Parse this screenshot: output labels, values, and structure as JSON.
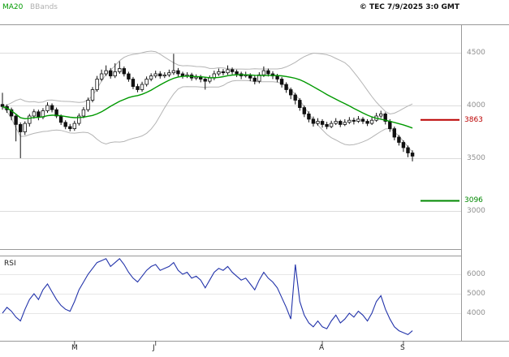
{
  "header": {
    "ma_label": "MA20",
    "bbands_label": "BBands",
    "copyright": "© TEC 7/9/2025 3:0 GMT"
  },
  "rsi_panel": {
    "label": "RSI"
  },
  "colors": {
    "ma20": "#009900",
    "bbands": "#b4b4b4",
    "candle": "#111111",
    "rsi_line": "#2233aa",
    "grid": "#dcdcdc",
    "border": "#999999"
  },
  "chart_data": {
    "type": "candlestick",
    "panels": [
      "price",
      "rsi"
    ],
    "overlays": [
      "MA20",
      "BBands(20,2)"
    ],
    "price_axis_ticks": [
      4500,
      4000,
      3500,
      3000
    ],
    "levels": [
      {
        "label": "3863",
        "value": 3863,
        "color": "#bb0000"
      },
      {
        "label": "3096",
        "value": 3096,
        "color": "#008800"
      }
    ],
    "x_labels": [
      {
        "label": "M",
        "index": 16
      },
      {
        "label": "J",
        "index": 34
      },
      {
        "label": "A",
        "index": 71
      },
      {
        "label": "S",
        "index": 89
      }
    ],
    "rsi_axis_ticks": [
      {
        "label": "6000",
        "value": 60
      },
      {
        "label": "5000",
        "value": 50
      },
      {
        "label": "4000",
        "value": 40
      }
    ],
    "candles_ohlc": [
      [
        4010,
        4120,
        3960,
        3990
      ],
      [
        3990,
        4010,
        3930,
        3960
      ],
      [
        3960,
        3980,
        3860,
        3900
      ],
      [
        3900,
        3920,
        3660,
        3820
      ],
      [
        3820,
        3840,
        3500,
        3750
      ],
      [
        3750,
        3850,
        3720,
        3830
      ],
      [
        3830,
        3920,
        3800,
        3900
      ],
      [
        3900,
        3965,
        3875,
        3940
      ],
      [
        3940,
        3960,
        3860,
        3890
      ],
      [
        3890,
        3975,
        3870,
        3950
      ],
      [
        3950,
        4030,
        3930,
        4000
      ],
      [
        4000,
        4020,
        3935,
        3960
      ],
      [
        3960,
        3980,
        3880,
        3900
      ],
      [
        3900,
        3915,
        3815,
        3840
      ],
      [
        3840,
        3860,
        3775,
        3800
      ],
      [
        3800,
        3825,
        3755,
        3780
      ],
      [
        3780,
        3855,
        3760,
        3830
      ],
      [
        3830,
        3925,
        3810,
        3900
      ],
      [
        3900,
        3985,
        3880,
        3960
      ],
      [
        3960,
        4075,
        3940,
        4050
      ],
      [
        4050,
        4175,
        4030,
        4150
      ],
      [
        4150,
        4280,
        4130,
        4250
      ],
      [
        4250,
        4340,
        4230,
        4300
      ],
      [
        4300,
        4380,
        4280,
        4330
      ],
      [
        4330,
        4355,
        4255,
        4280
      ],
      [
        4280,
        4400,
        4260,
        4320
      ],
      [
        4320,
        4420,
        4300,
        4350
      ],
      [
        4350,
        4370,
        4275,
        4300
      ],
      [
        4300,
        4320,
        4225,
        4250
      ],
      [
        4250,
        4270,
        4155,
        4180
      ],
      [
        4180,
        4205,
        4125,
        4150
      ],
      [
        4150,
        4225,
        4130,
        4200
      ],
      [
        4200,
        4275,
        4180,
        4250
      ],
      [
        4250,
        4305,
        4230,
        4280
      ],
      [
        4280,
        4330,
        4260,
        4300
      ],
      [
        4300,
        4325,
        4255,
        4280
      ],
      [
        4280,
        4315,
        4260,
        4290
      ],
      [
        4290,
        4340,
        4270,
        4310
      ],
      [
        4310,
        4490,
        4290,
        4330
      ],
      [
        4330,
        4355,
        4275,
        4300
      ],
      [
        4300,
        4320,
        4255,
        4280
      ],
      [
        4280,
        4315,
        4260,
        4290
      ],
      [
        4290,
        4310,
        4235,
        4260
      ],
      [
        4260,
        4295,
        4240,
        4270
      ],
      [
        4270,
        4290,
        4220,
        4250
      ],
      [
        4250,
        4270,
        4150,
        4230
      ],
      [
        4230,
        4285,
        4210,
        4260
      ],
      [
        4260,
        4330,
        4240,
        4300
      ],
      [
        4300,
        4350,
        4280,
        4320
      ],
      [
        4320,
        4345,
        4285,
        4310
      ],
      [
        4310,
        4380,
        4290,
        4340
      ],
      [
        4340,
        4360,
        4295,
        4320
      ],
      [
        4320,
        4340,
        4270,
        4300
      ],
      [
        4300,
        4320,
        4250,
        4280
      ],
      [
        4280,
        4320,
        4265,
        4290
      ],
      [
        4290,
        4305,
        4230,
        4260
      ],
      [
        4260,
        4280,
        4200,
        4230
      ],
      [
        4230,
        4315,
        4210,
        4290
      ],
      [
        4290,
        4370,
        4270,
        4330
      ],
      [
        4330,
        4350,
        4275,
        4300
      ],
      [
        4300,
        4325,
        4250,
        4280
      ],
      [
        4280,
        4300,
        4220,
        4250
      ],
      [
        4250,
        4270,
        4170,
        4200
      ],
      [
        4200,
        4220,
        4120,
        4150
      ],
      [
        4150,
        4170,
        4060,
        4100
      ],
      [
        4100,
        4120,
        4010,
        4050
      ],
      [
        4050,
        4070,
        3950,
        3980
      ],
      [
        3980,
        4000,
        3890,
        3920
      ],
      [
        3920,
        3945,
        3840,
        3870
      ],
      [
        3870,
        3895,
        3800,
        3830
      ],
      [
        3830,
        3880,
        3810,
        3850
      ],
      [
        3850,
        3870,
        3790,
        3820
      ],
      [
        3820,
        3845,
        3775,
        3800
      ],
      [
        3800,
        3855,
        3785,
        3830
      ],
      [
        3830,
        3880,
        3815,
        3850
      ],
      [
        3850,
        3865,
        3795,
        3820
      ],
      [
        3820,
        3870,
        3805,
        3840
      ],
      [
        3840,
        3890,
        3825,
        3860
      ],
      [
        3860,
        3885,
        3820,
        3850
      ],
      [
        3850,
        3900,
        3835,
        3870
      ],
      [
        3870,
        3890,
        3825,
        3850
      ],
      [
        3850,
        3870,
        3805,
        3830
      ],
      [
        3830,
        3890,
        3815,
        3860
      ],
      [
        3860,
        3930,
        3845,
        3900
      ],
      [
        3900,
        3950,
        3880,
        3920
      ],
      [
        3920,
        3935,
        3820,
        3850
      ],
      [
        3850,
        3870,
        3750,
        3780
      ],
      [
        3780,
        3800,
        3670,
        3700
      ],
      [
        3700,
        3720,
        3620,
        3650
      ],
      [
        3650,
        3670,
        3560,
        3600
      ],
      [
        3600,
        3620,
        3510,
        3550
      ],
      [
        3550,
        3575,
        3470,
        3520
      ]
    ],
    "rsi": [
      40,
      43,
      41,
      38,
      36,
      42,
      47,
      50,
      47,
      52,
      55,
      51,
      47,
      44,
      42,
      41,
      46,
      52,
      56,
      60,
      63,
      66,
      67,
      68,
      64,
      66,
      68,
      65,
      61,
      58,
      56,
      59,
      62,
      64,
      65,
      62,
      63,
      64,
      66,
      62,
      60,
      61,
      58,
      59,
      57,
      53,
      57,
      61,
      63,
      62,
      64,
      61,
      59,
      57,
      58,
      55,
      52,
      57,
      61,
      58,
      56,
      53,
      48,
      43,
      37,
      65,
      46,
      39,
      35,
      33,
      36,
      33,
      32,
      36,
      39,
      35,
      37,
      40,
      38,
      41,
      39,
      36,
      40,
      46,
      49,
      42,
      37,
      33,
      31,
      30,
      29,
      31
    ]
  }
}
